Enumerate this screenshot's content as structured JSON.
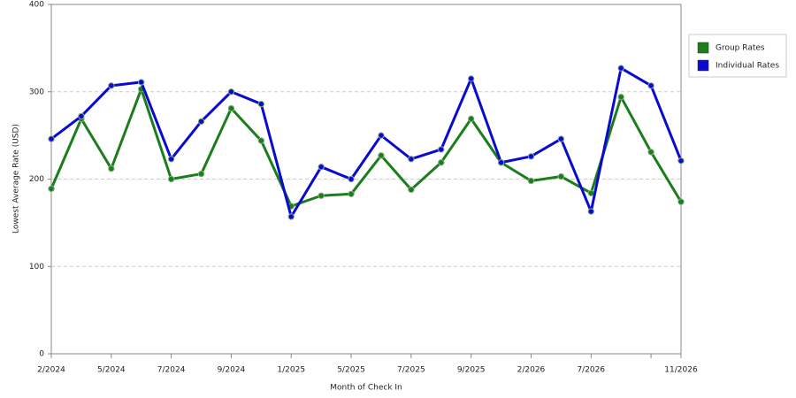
{
  "chart_data": {
    "type": "line",
    "x_label": "Month of Check In",
    "y_label": "Lowest Average Rate (USD)",
    "categories": [
      "2/2024",
      null,
      "5/2024",
      null,
      "7/2024",
      null,
      "9/2024",
      null,
      "1/2025",
      null,
      "5/2025",
      null,
      "7/2025",
      null,
      "9/2025",
      null,
      "2/2026",
      null,
      "7/2026",
      null,
      null,
      "11/2026"
    ],
    "series": [
      {
        "name": "Group Rates",
        "color": "#1b7d1b",
        "values": [
          189,
          269,
          212,
          303,
          200,
          206,
          281,
          244,
          169,
          181,
          183,
          227,
          188,
          219,
          269,
          219,
          198,
          203,
          184,
          294,
          231,
          174
        ]
      },
      {
        "name": "Individual Rates",
        "color": "#0a0ad0",
        "values": [
          246,
          272,
          307,
          311,
          223,
          266,
          300,
          286,
          157,
          214,
          200,
          250,
          223,
          234,
          315,
          219,
          226,
          246,
          163,
          327,
          307,
          221
        ]
      }
    ],
    "ylim": [
      0,
      400
    ],
    "yticks": [
      0,
      100,
      200,
      300,
      400
    ],
    "grid": true,
    "legend": "right"
  }
}
